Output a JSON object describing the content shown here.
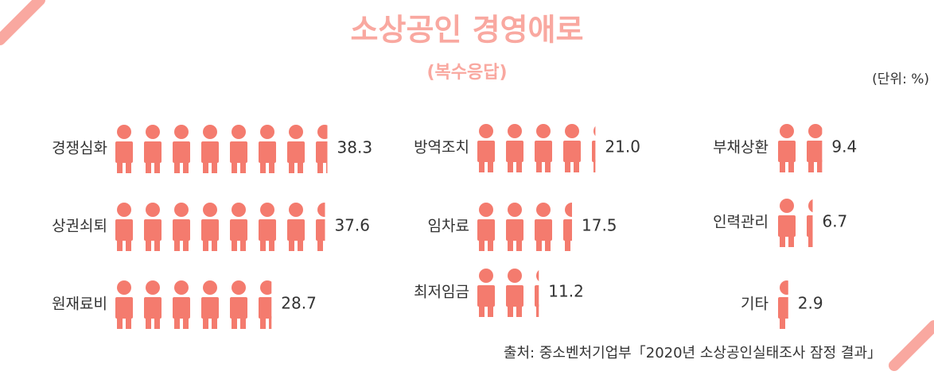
{
  "chart_data": {
    "type": "pictogram",
    "title": "소상공인 경영애로",
    "subtitle": "(복수응답)",
    "unit_note": "(단위: %)",
    "source": "출처: 중소벤처기업부「2020년 소상공인실태조사 잠정 결과」",
    "color": "#f47b6e",
    "categories": [
      "경쟁심화",
      "상권쇠퇴",
      "원재료비",
      "방역조치",
      "임차료",
      "최저임금",
      "부채상환",
      "인력관리",
      "기타"
    ],
    "values": [
      38.3,
      37.6,
      28.7,
      21.0,
      17.5,
      11.2,
      9.4,
      6.7,
      2.9
    ],
    "value_labels": [
      "38.3",
      "37.6",
      "28.7",
      "21.0",
      "17.5",
      "11.2",
      "9.4",
      "6.7",
      "2.9"
    ]
  }
}
